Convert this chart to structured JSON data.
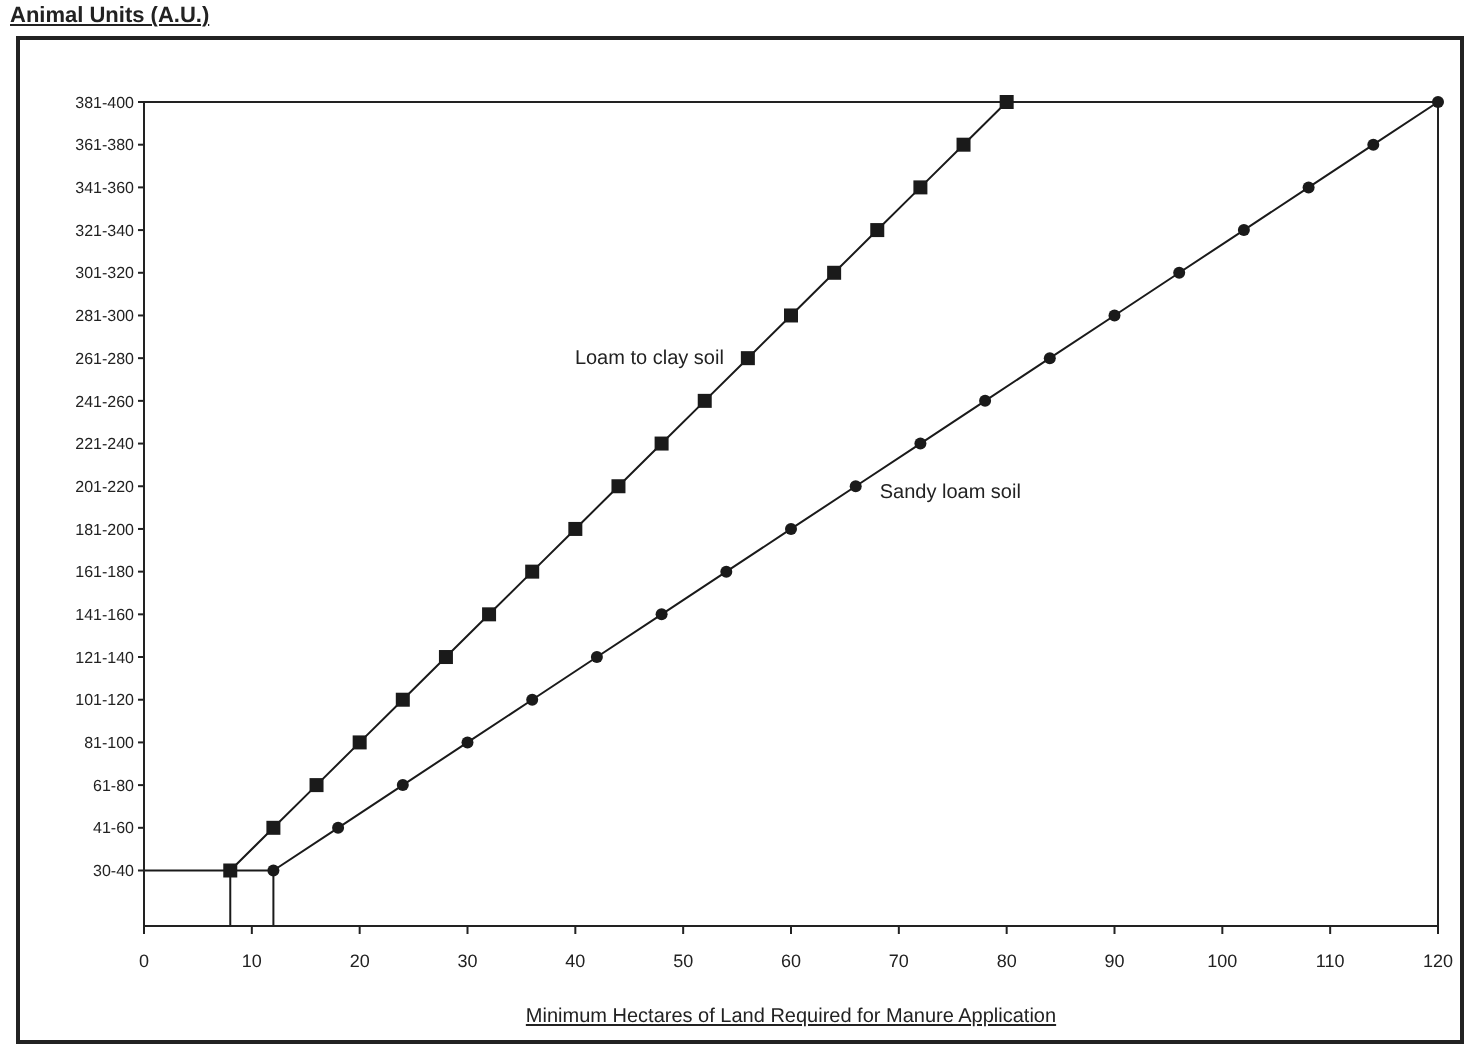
{
  "chart_data": {
    "type": "line",
    "orientation": "horizontal",
    "ylabel": "Animal Units (A.U.)",
    "xlabel": "Minimum Hectares of Land Required for Manure Application",
    "categories": [
      "381-400",
      "361-380",
      "341-360",
      "321-340",
      "301-320",
      "281-300",
      "261-280",
      "241-260",
      "221-240",
      "201-220",
      "181-200",
      "161-180",
      "141-160",
      "121-140",
      "101-120",
      "81-100",
      "61-80",
      "41-60",
      "30-40"
    ],
    "xlim": [
      0,
      120
    ],
    "xticks": [
      0,
      10,
      20,
      30,
      40,
      50,
      60,
      70,
      80,
      90,
      100,
      110,
      120
    ],
    "grid": false,
    "legend": false,
    "series": [
      {
        "name": "Loam to clay soil",
        "color": "#1a1a1a",
        "marker": "square",
        "values": [
          80,
          76,
          72,
          68,
          64,
          60,
          56,
          52,
          48,
          44,
          40,
          36,
          32,
          28,
          24,
          20,
          16,
          12,
          8
        ]
      },
      {
        "name": "Sandy loam soil",
        "color": "#1a1a1a",
        "marker": "circle",
        "values": [
          120,
          114,
          108,
          102,
          96,
          90,
          84,
          78,
          72,
          66,
          60,
          54,
          48,
          42,
          36,
          30,
          24,
          18,
          12
        ]
      }
    ]
  }
}
